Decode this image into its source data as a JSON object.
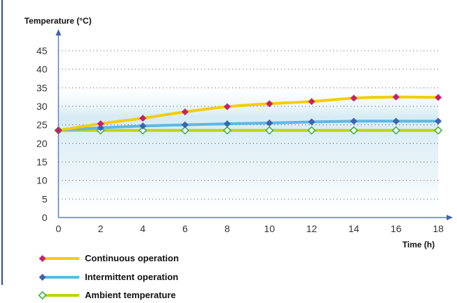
{
  "chart_data": {
    "type": "line",
    "ylabel": "Temperature (°C)",
    "xlabel": "Time (h)",
    "xlim": [
      0,
      18
    ],
    "ylim": [
      0,
      45
    ],
    "xticks": [
      0,
      2,
      4,
      6,
      8,
      10,
      12,
      14,
      16,
      18
    ],
    "yticks": [
      0,
      5,
      10,
      15,
      20,
      25,
      30,
      35,
      40,
      45
    ],
    "grid": "horizontal dotted",
    "legend_position": "bottom-left",
    "series": [
      {
        "name": "Continuous operation",
        "line_color": "#f5cd00",
        "marker": "filled-diamond",
        "marker_color": "#c81e6e",
        "x": [
          0,
          2,
          4,
          6,
          8,
          10,
          12,
          14,
          16,
          18
        ],
        "y": [
          23.5,
          25.3,
          26.8,
          28.5,
          29.9,
          30.7,
          31.3,
          32.2,
          32.5,
          32.4
        ]
      },
      {
        "name": "Intermittent operation",
        "line_color": "#5cb8e6",
        "marker": "filled-diamond",
        "marker_color": "#3f62ae",
        "x": [
          0,
          2,
          4,
          6,
          8,
          10,
          12,
          14,
          16,
          18
        ],
        "y": [
          23.5,
          24.2,
          24.7,
          25.0,
          25.3,
          25.5,
          25.8,
          26.0,
          26.0,
          26.0
        ]
      },
      {
        "name": "Ambient temperature",
        "line_color": "#b8d800",
        "marker": "hollow-diamond",
        "marker_color": "#3db23d",
        "x": [
          0,
          2,
          4,
          6,
          8,
          10,
          12,
          14,
          16,
          18
        ],
        "y": [
          23.5,
          23.5,
          23.5,
          23.5,
          23.5,
          23.5,
          23.5,
          23.5,
          23.5,
          23.5
        ]
      }
    ]
  }
}
